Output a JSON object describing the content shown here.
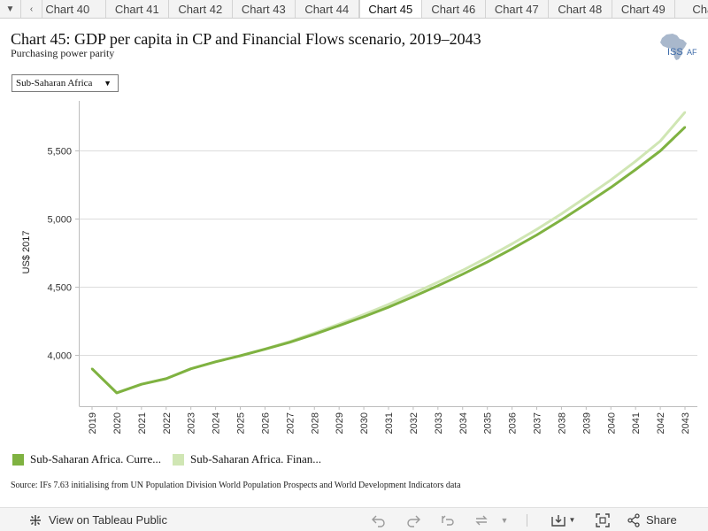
{
  "tabbar": {
    "menu_icon": "caret-down-icon",
    "prev_icon": "chevron-left-icon",
    "tabs": [
      {
        "label": "Chart 40",
        "active": false
      },
      {
        "label": "Chart 41",
        "active": false
      },
      {
        "label": "Chart 42",
        "active": false
      },
      {
        "label": "Chart 43",
        "active": false
      },
      {
        "label": "Chart 44",
        "active": false
      },
      {
        "label": "Chart 45",
        "active": true
      },
      {
        "label": "Chart 46",
        "active": false
      },
      {
        "label": "Chart 47",
        "active": false
      },
      {
        "label": "Chart 48",
        "active": false
      },
      {
        "label": "Chart 49",
        "active": false
      },
      {
        "label": "Chart",
        "active": false
      }
    ]
  },
  "header": {
    "title": "Chart 45: GDP per capita in CP and Financial Flows scenario, 2019–2043",
    "subtitle": "Purchasing power parity",
    "logo_text": "ISS",
    "logo_suffix": "AF"
  },
  "filter": {
    "selected": "Sub-Saharan Africa"
  },
  "chart_data": {
    "type": "line",
    "title": "Chart 45: GDP per capita in CP and Financial Flows scenario, 2019–2043",
    "subtitle": "Purchasing power parity",
    "xlabel": "",
    "ylabel": "US$ 2017",
    "x": [
      2019,
      2020,
      2021,
      2022,
      2023,
      2024,
      2025,
      2026,
      2027,
      2028,
      2029,
      2030,
      2031,
      2032,
      2033,
      2034,
      2035,
      2036,
      2037,
      2038,
      2039,
      2040,
      2041,
      2042,
      2043
    ],
    "yticks": [
      4000,
      4500,
      5000,
      5500
    ],
    "ytick_labels": [
      "4,000",
      "4,500",
      "5,000",
      "5,500"
    ],
    "ylim": [
      3620,
      5900
    ],
    "grid": true,
    "legend_position": "bottom-left",
    "series": [
      {
        "name": "Sub-Saharan Africa. Curre...",
        "color": "#7fb241",
        "values": [
          3895,
          3718,
          3781,
          3822,
          3895,
          3946,
          3990,
          4038,
          4089,
          4148,
          4212,
          4277,
          4347,
          4424,
          4504,
          4589,
          4679,
          4775,
          4877,
          4988,
          5105,
          5226,
          5357,
          5494,
          5668
        ]
      },
      {
        "name": "Sub-Saharan Africa. Finan...",
        "color": "#d0e6b4",
        "values": [
          3895,
          3718,
          3781,
          3822,
          3895,
          3946,
          3990,
          4040,
          4094,
          4157,
          4223,
          4293,
          4367,
          4448,
          4530,
          4618,
          4712,
          4812,
          4918,
          5032,
          5154,
          5281,
          5418,
          5566,
          5778
        ]
      }
    ]
  },
  "source": "Source: IFs 7.63 initialising from UN Population Division World Population Prospects and World Development Indicators data",
  "toolbar": {
    "view_label": "View on Tableau Public",
    "share_label": "Share"
  }
}
